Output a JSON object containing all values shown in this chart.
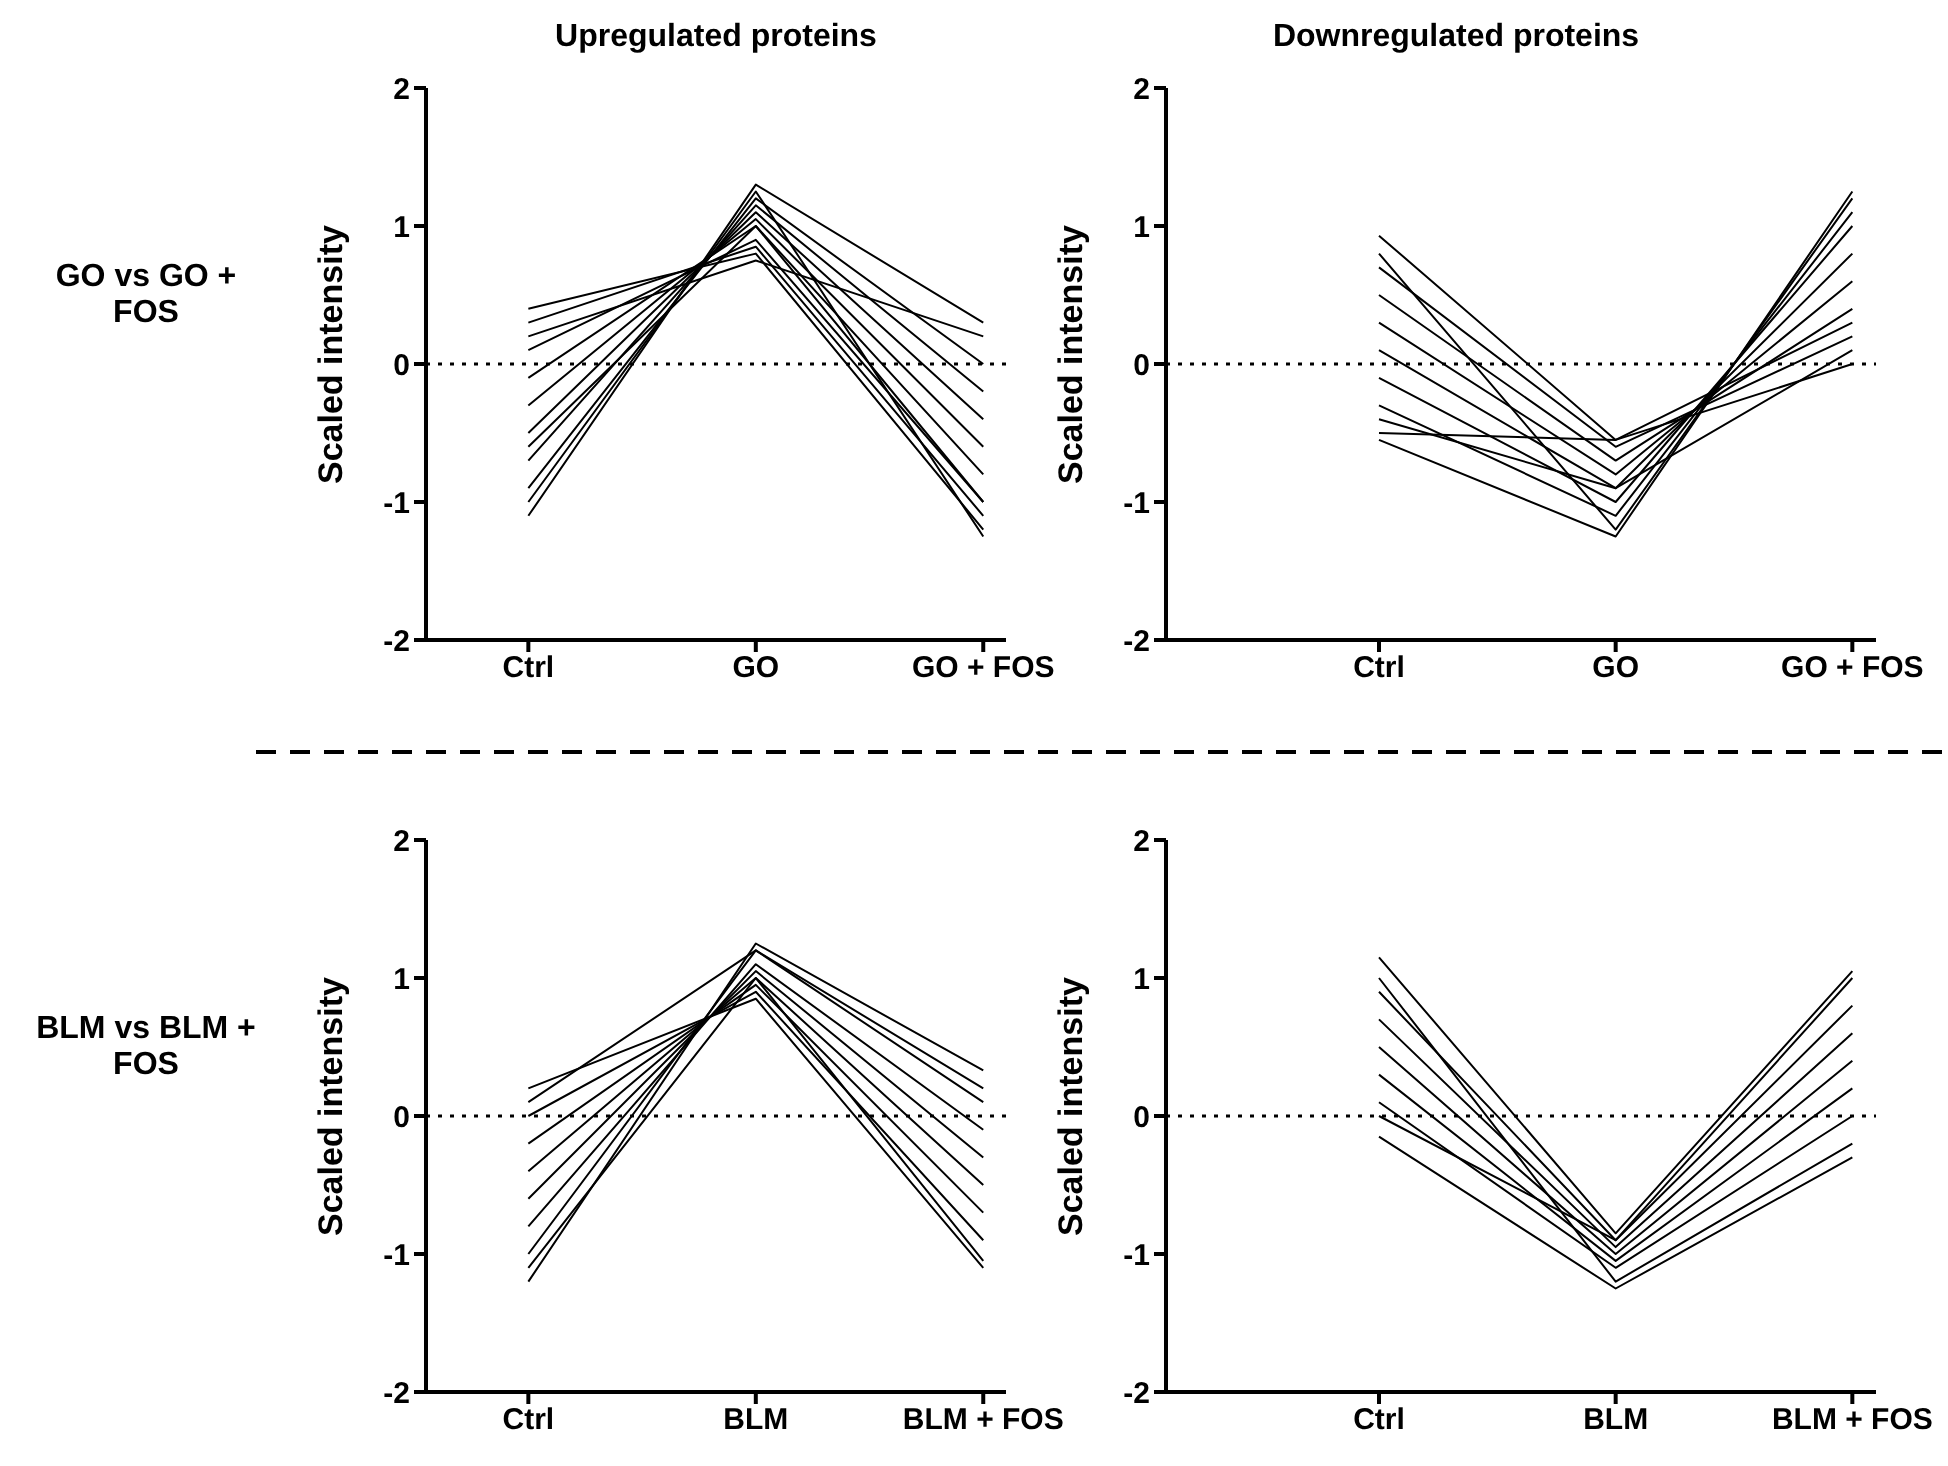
{
  "chart_data": [
    {
      "type": "line",
      "title": "Upregulated proteins",
      "ylabel": "Scaled intensity",
      "annotations": [
        "GO vs GO + FOS"
      ],
      "categories": [
        "Ctrl",
        "GO",
        "GO + FOS"
      ],
      "ylim": [
        -2,
        2
      ],
      "yticks": [
        -2,
        -1,
        0,
        1,
        2
      ],
      "ref_lines": [
        {
          "axis": "y",
          "value": 0,
          "line_style": "dotted"
        }
      ],
      "series": [
        {
          "color": "#000000",
          "values": [
            0.4,
            0.8,
            -1.2
          ]
        },
        {
          "color": "#000000",
          "values": [
            0.3,
            0.85,
            -1.1
          ]
        },
        {
          "color": "#000000",
          "values": [
            0.1,
            0.9,
            -1.0
          ]
        },
        {
          "color": "#000000",
          "values": [
            -0.1,
            1.0,
            -0.8
          ]
        },
        {
          "color": "#000000",
          "values": [
            -0.3,
            1.05,
            -0.6
          ]
        },
        {
          "color": "#000000",
          "values": [
            -0.5,
            1.1,
            -0.4
          ]
        },
        {
          "color": "#000000",
          "values": [
            -0.7,
            1.15,
            -0.2
          ]
        },
        {
          "color": "#000000",
          "values": [
            -0.9,
            1.2,
            0.0
          ]
        },
        {
          "color": "#000000",
          "values": [
            -1.1,
            1.3,
            0.3
          ]
        },
        {
          "color": "#000000",
          "values": [
            -1.0,
            1.25,
            -1.25
          ]
        },
        {
          "color": "#000000",
          "values": [
            0.2,
            0.75,
            0.2
          ]
        },
        {
          "color": "#000000",
          "values": [
            -0.6,
            1.0,
            -1.0
          ]
        }
      ]
    },
    {
      "type": "line",
      "title": "Downregulated proteins",
      "ylabel": "Scaled intensity",
      "categories": [
        "Ctrl",
        "GO",
        "GO + FOS"
      ],
      "ylim": [
        -2,
        2
      ],
      "yticks": [
        -2,
        -1,
        0,
        1,
        2
      ],
      "ref_lines": [
        {
          "axis": "y",
          "value": 0,
          "line_style": "dotted"
        }
      ],
      "series": [
        {
          "color": "#000000",
          "values": [
            0.93,
            -0.55,
            0.0
          ]
        },
        {
          "color": "#000000",
          "values": [
            0.7,
            -0.6,
            0.2
          ]
        },
        {
          "color": "#000000",
          "values": [
            0.5,
            -0.7,
            0.4
          ]
        },
        {
          "color": "#000000",
          "values": [
            0.3,
            -0.8,
            0.6
          ]
        },
        {
          "color": "#000000",
          "values": [
            0.1,
            -0.9,
            0.8
          ]
        },
        {
          "color": "#000000",
          "values": [
            -0.1,
            -1.0,
            1.0
          ]
        },
        {
          "color": "#000000",
          "values": [
            -0.3,
            -1.1,
            1.1
          ]
        },
        {
          "color": "#000000",
          "values": [
            -0.55,
            -1.25,
            1.25
          ]
        },
        {
          "color": "#000000",
          "values": [
            -0.5,
            -0.55,
            0.3
          ]
        },
        {
          "color": "#000000",
          "values": [
            0.8,
            -1.2,
            1.2
          ]
        },
        {
          "color": "#000000",
          "values": [
            -0.4,
            -0.9,
            0.1
          ]
        }
      ]
    },
    {
      "type": "line",
      "ylabel": "Scaled intensity",
      "annotations": [
        "BLM vs BLM + FOS"
      ],
      "categories": [
        "Ctrl",
        "BLM",
        "BLM + FOS"
      ],
      "ylim": [
        -2,
        2
      ],
      "yticks": [
        -2,
        -1,
        0,
        1,
        2
      ],
      "ref_lines": [
        {
          "axis": "y",
          "value": 0,
          "line_style": "dotted"
        }
      ],
      "series": [
        {
          "color": "#000000",
          "values": [
            0.2,
            0.85,
            -1.1
          ]
        },
        {
          "color": "#000000",
          "values": [
            0.0,
            0.9,
            -0.9
          ]
        },
        {
          "color": "#000000",
          "values": [
            -0.2,
            0.95,
            -0.7
          ]
        },
        {
          "color": "#000000",
          "values": [
            -0.4,
            1.0,
            -0.5
          ]
        },
        {
          "color": "#000000",
          "values": [
            -0.6,
            1.05,
            -0.3
          ]
        },
        {
          "color": "#000000",
          "values": [
            -0.8,
            1.1,
            -0.1
          ]
        },
        {
          "color": "#000000",
          "values": [
            -1.0,
            1.2,
            0.1
          ]
        },
        {
          "color": "#000000",
          "values": [
            -1.2,
            1.25,
            0.33
          ]
        },
        {
          "color": "#000000",
          "values": [
            -1.1,
            1.0,
            -1.05
          ]
        },
        {
          "color": "#000000",
          "values": [
            0.1,
            1.2,
            0.2
          ]
        }
      ]
    },
    {
      "type": "line",
      "ylabel": "Scaled intensity",
      "categories": [
        "Ctrl",
        "BLM",
        "BLM + FOS"
      ],
      "ylim": [
        -2,
        2
      ],
      "yticks": [
        -2,
        -1,
        0,
        1,
        2
      ],
      "ref_lines": [
        {
          "axis": "y",
          "value": 0,
          "line_style": "dotted"
        }
      ],
      "series": [
        {
          "color": "#000000",
          "values": [
            1.15,
            -0.85,
            1.05
          ]
        },
        {
          "color": "#000000",
          "values": [
            0.9,
            -0.9,
            0.8
          ]
        },
        {
          "color": "#000000",
          "values": [
            0.7,
            -0.95,
            0.6
          ]
        },
        {
          "color": "#000000",
          "values": [
            0.5,
            -1.0,
            0.4
          ]
        },
        {
          "color": "#000000",
          "values": [
            0.3,
            -1.05,
            0.2
          ]
        },
        {
          "color": "#000000",
          "values": [
            0.1,
            -1.1,
            0.0
          ]
        },
        {
          "color": "#000000",
          "values": [
            -0.15,
            -1.25,
            -0.3
          ]
        },
        {
          "color": "#000000",
          "values": [
            1.0,
            -1.2,
            -0.2
          ]
        },
        {
          "color": "#000000",
          "values": [
            0.0,
            -0.9,
            1.0
          ]
        }
      ]
    }
  ]
}
